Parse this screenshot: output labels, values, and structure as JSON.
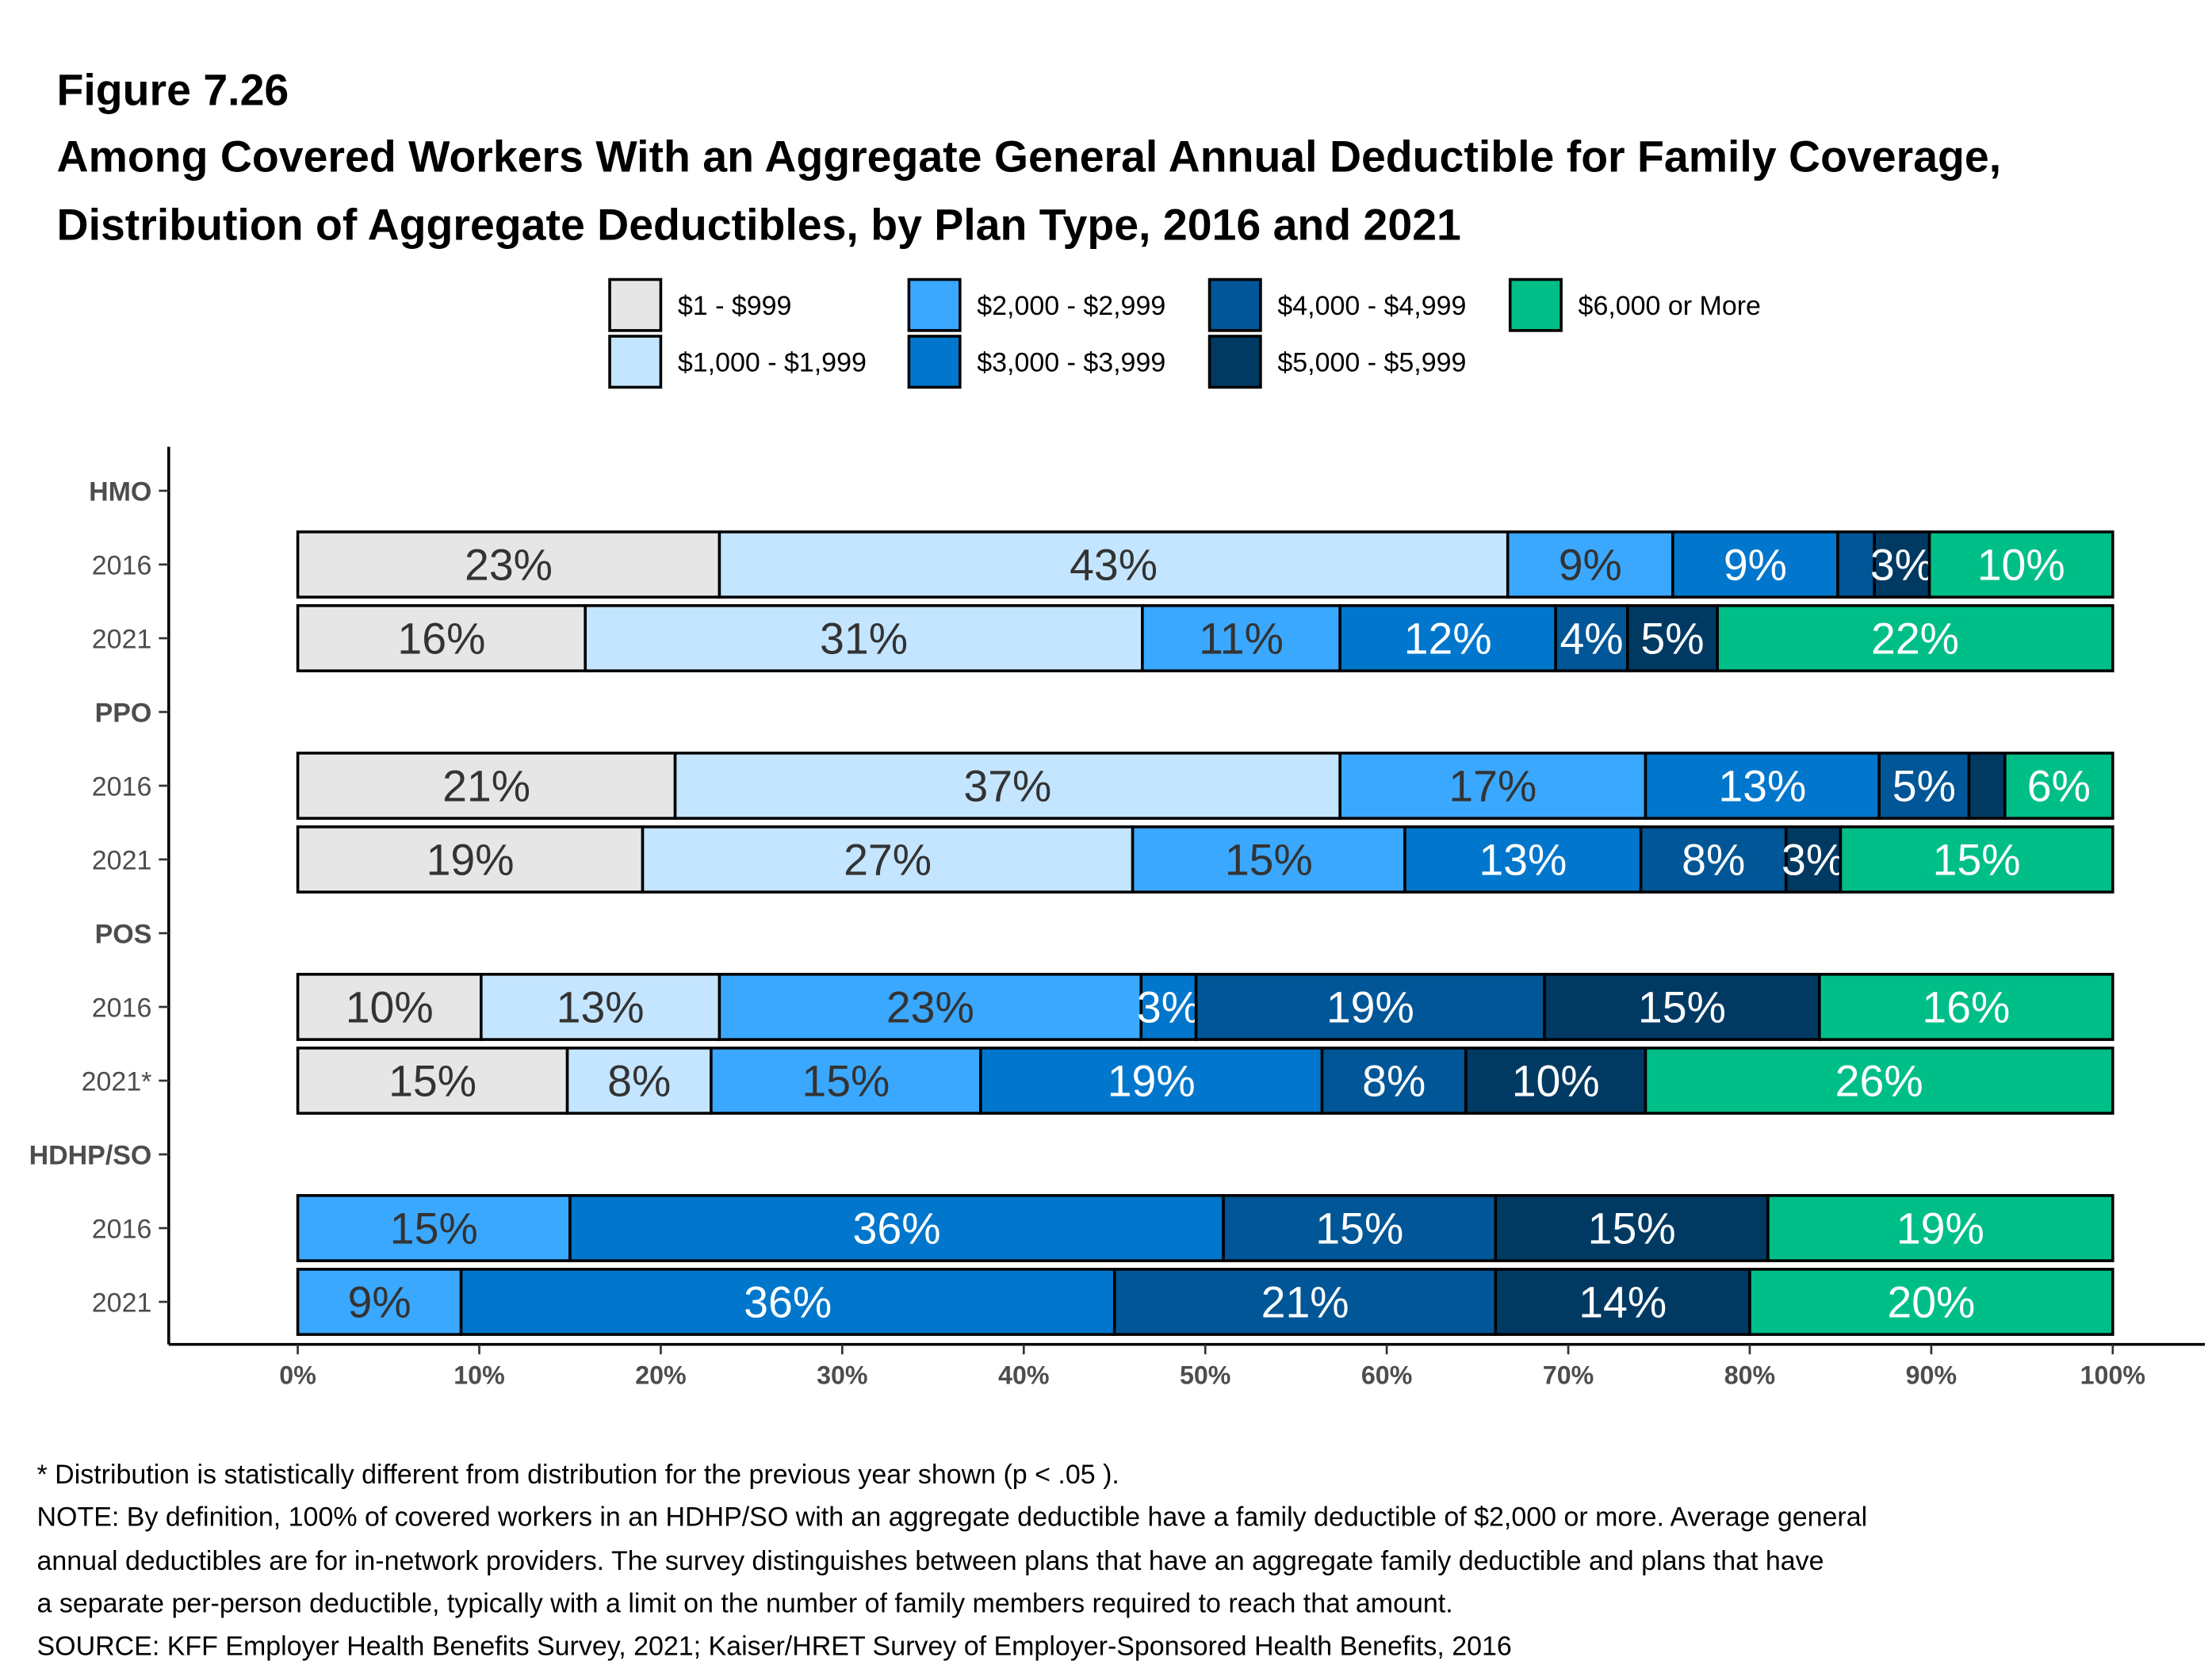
{
  "figure_label": "Figure 7.26",
  "title_lines": [
    "Among Covered Workers With an Aggregate General Annual Deductible for Family Coverage,",
    "Distribution of Aggregate Deductibles, by Plan Type, 2016 and 2021"
  ],
  "chart_data": {
    "type": "bar",
    "orientation": "horizontal",
    "stacked": true,
    "xlim": [
      0,
      100
    ],
    "x_ticks": [
      "0%",
      "10%",
      "20%",
      "30%",
      "40%",
      "50%",
      "60%",
      "70%",
      "80%",
      "90%",
      "100%"
    ],
    "legend_position": "top",
    "grid": false,
    "series": [
      {
        "name": "$1 - $999",
        "color": "#E6E6E6"
      },
      {
        "name": "$1,000 - $1,999",
        "color": "#C4E5FF"
      },
      {
        "name": "$2,000 - $2,999",
        "color": "#3BA8FF"
      },
      {
        "name": "$3,000 - $3,999",
        "color": "#0077CC"
      },
      {
        "name": "$4,000 - $4,999",
        "color": "#005696"
      },
      {
        "name": "$5,000 - $5,999",
        "color": "#003A63"
      },
      {
        "name": "$6,000 or More",
        "color": "#00BE88"
      }
    ],
    "groups": [
      {
        "name": "HMO",
        "rows": [
          {
            "label": "2016",
            "values": [
              23,
              43,
              9,
              9,
              2,
              3,
              10
            ]
          },
          {
            "label": "2021",
            "values": [
              16,
              31,
              11,
              12,
              4,
              5,
              22
            ]
          }
        ]
      },
      {
        "name": "PPO",
        "rows": [
          {
            "label": "2016",
            "values": [
              21,
              37,
              17,
              13,
              5,
              2,
              6
            ]
          },
          {
            "label": "2021",
            "values": [
              19,
              27,
              15,
              13,
              8,
              3,
              15
            ]
          }
        ]
      },
      {
        "name": "POS",
        "rows": [
          {
            "label": "2016",
            "values": [
              10,
              13,
              23,
              3,
              19,
              15,
              16
            ]
          },
          {
            "label": "2021*",
            "values": [
              15,
              8,
              15,
              19,
              8,
              10,
              26
            ]
          }
        ]
      },
      {
        "name": "HDHP/SO",
        "rows": [
          {
            "label": "2016",
            "values": [
              0,
              0,
              15,
              36,
              15,
              15,
              19
            ]
          },
          {
            "label": "2021",
            "values": [
              0,
              0,
              9,
              36,
              21,
              14,
              20
            ]
          }
        ]
      }
    ]
  },
  "notes": [
    "* Distribution is statistically different from distribution for the previous year shown (p < .05 ).",
    "NOTE: By definition, 100% of covered workers in an HDHP/SO with an aggregate deductible have a family deductible of $2,000 or more. Average general",
    "annual deductibles are for in-network providers. The survey distinguishes between plans that have an aggregate family deductible and plans that have",
    "a separate per-person deductible, typically with a limit on the number of family members required to reach that amount.",
    "SOURCE: KFF Employer Health Benefits Survey, 2021; Kaiser/HRET Survey of Employer-Sponsored Health Benefits, 2016"
  ]
}
